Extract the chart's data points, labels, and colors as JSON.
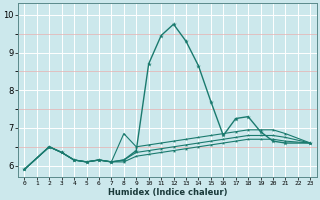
{
  "xlabel": "Humidex (Indice chaleur)",
  "bg_color": "#cce8ec",
  "grid_color": "#ffffff",
  "red_grid_color": "#e8b0b0",
  "line_color": "#1a7a6e",
  "xlim": [
    -0.5,
    23.5
  ],
  "ylim": [
    5.7,
    10.3
  ],
  "xtick_labels": [
    "0",
    "1",
    "2",
    "3",
    "4",
    "5",
    "6",
    "7",
    "8",
    "9",
    "10",
    "11",
    "12",
    "13",
    "14",
    "15",
    "16",
    "17",
    "18",
    "19",
    "20",
    "21",
    "22",
    "23"
  ],
  "yticks": [
    6,
    7,
    8,
    9,
    10
  ],
  "series": [
    {
      "x": [
        0,
        2,
        3,
        4,
        5,
        6,
        7,
        8,
        9,
        10,
        11,
        12,
        13,
        14,
        15,
        16,
        17,
        18,
        19,
        20,
        21,
        23
      ],
      "y": [
        5.9,
        6.5,
        6.35,
        6.15,
        6.1,
        6.15,
        6.1,
        6.15,
        6.4,
        8.7,
        9.45,
        9.75,
        9.3,
        8.65,
        7.7,
        6.8,
        7.25,
        7.3,
        6.9,
        6.65,
        6.6,
        6.6
      ]
    },
    {
      "x": [
        0,
        2,
        3,
        4,
        5,
        6,
        7,
        8,
        9,
        10,
        11,
        12,
        13,
        14,
        15,
        16,
        17,
        18,
        19,
        20,
        21,
        23
      ],
      "y": [
        5.9,
        6.5,
        6.35,
        6.15,
        6.1,
        6.15,
        6.1,
        6.85,
        6.5,
        6.55,
        6.6,
        6.65,
        6.7,
        6.75,
        6.8,
        6.85,
        6.9,
        6.95,
        6.95,
        6.95,
        6.85,
        6.6
      ]
    },
    {
      "x": [
        0,
        2,
        3,
        4,
        5,
        6,
        7,
        8,
        9,
        10,
        11,
        12,
        13,
        14,
        15,
        16,
        17,
        18,
        19,
        20,
        21,
        23
      ],
      "y": [
        5.9,
        6.5,
        6.35,
        6.15,
        6.1,
        6.15,
        6.1,
        6.15,
        6.35,
        6.4,
        6.45,
        6.5,
        6.55,
        6.6,
        6.65,
        6.7,
        6.75,
        6.8,
        6.8,
        6.8,
        6.75,
        6.6
      ]
    },
    {
      "x": [
        0,
        2,
        3,
        4,
        5,
        6,
        7,
        8,
        9,
        10,
        11,
        12,
        13,
        14,
        15,
        16,
        17,
        18,
        19,
        20,
        21,
        23
      ],
      "y": [
        5.9,
        6.5,
        6.35,
        6.15,
        6.1,
        6.15,
        6.1,
        6.1,
        6.25,
        6.3,
        6.35,
        6.4,
        6.45,
        6.5,
        6.55,
        6.6,
        6.65,
        6.7,
        6.7,
        6.7,
        6.65,
        6.6
      ]
    }
  ]
}
